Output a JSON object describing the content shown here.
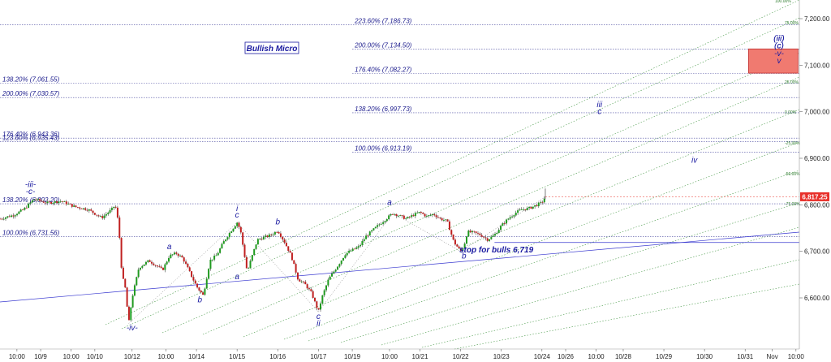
{
  "chart_data": {
    "type": "candlestick",
    "title": "Bullish Micro",
    "ylim": [
      6480,
      7240
    ],
    "xlim": [
      0,
      118
    ],
    "last_price": "6,817.25",
    "last_price_value": 6817.25,
    "y_ticks": [
      {
        "value": 6600,
        "label": "6,600.00"
      },
      {
        "value": 6700,
        "label": "6,700.00"
      },
      {
        "value": 6800,
        "label": "6,800.00"
      },
      {
        "value": 6900,
        "label": "6,900.00"
      },
      {
        "value": 7000,
        "label": "7,000.00"
      },
      {
        "value": 7100,
        "label": "7,100.00"
      },
      {
        "value": 7200,
        "label": "7,200.00"
      }
    ],
    "x_ticks": [
      {
        "x": 2.5,
        "label": "10:00"
      },
      {
        "x": 6,
        "label": "10/9"
      },
      {
        "x": 10.5,
        "label": "10:00"
      },
      {
        "x": 14,
        "label": "10/10"
      },
      {
        "x": 19.5,
        "label": "10/12"
      },
      {
        "x": 24.5,
        "label": "10:00"
      },
      {
        "x": 29,
        "label": "10/14"
      },
      {
        "x": 35,
        "label": "10/15"
      },
      {
        "x": 41,
        "label": "10/16"
      },
      {
        "x": 47,
        "label": "10/17"
      },
      {
        "x": 52,
        "label": "10/19"
      },
      {
        "x": 57.5,
        "label": "10:00"
      },
      {
        "x": 62,
        "label": "10/21"
      },
      {
        "x": 68,
        "label": "10/22"
      },
      {
        "x": 74,
        "label": "10/23"
      },
      {
        "x": 80,
        "label": "10/24"
      },
      {
        "x": 83.5,
        "label": "10/26"
      },
      {
        "x": 88,
        "label": "10:00"
      },
      {
        "x": 92,
        "label": "10/28"
      },
      {
        "x": 98,
        "label": "10/29"
      },
      {
        "x": 104,
        "label": "10/30"
      },
      {
        "x": 110,
        "label": "10/31"
      },
      {
        "x": 114,
        "label": "Nov"
      },
      {
        "x": 117.5,
        "label": "10:00"
      }
    ],
    "price_path": [
      [
        0,
        6770
      ],
      [
        2,
        6778
      ],
      [
        3.5,
        6790
      ],
      [
        5,
        6812
      ],
      [
        7,
        6804
      ],
      [
        9,
        6808
      ],
      [
        11,
        6796
      ],
      [
        13,
        6790
      ],
      [
        15,
        6772
      ],
      [
        16.5,
        6790
      ],
      [
        17,
        6800
      ],
      [
        17.5,
        6760
      ],
      [
        18,
        6650
      ],
      [
        18.5,
        6620
      ],
      [
        19,
        6545
      ],
      [
        19.5,
        6600
      ],
      [
        20.5,
        6665
      ],
      [
        22,
        6680
      ],
      [
        24,
        6660
      ],
      [
        25,
        6690
      ],
      [
        26,
        6696
      ],
      [
        27,
        6685
      ],
      [
        28,
        6655
      ],
      [
        29,
        6625
      ],
      [
        30,
        6605
      ],
      [
        31,
        6680
      ],
      [
        32,
        6692
      ],
      [
        33,
        6720
      ],
      [
        34,
        6742
      ],
      [
        35,
        6762
      ],
      [
        35.5,
        6745
      ],
      [
        36,
        6700
      ],
      [
        36.5,
        6655
      ],
      [
        37,
        6680
      ],
      [
        38,
        6725
      ],
      [
        40,
        6735
      ],
      [
        41,
        6745
      ],
      [
        42,
        6720
      ],
      [
        43,
        6690
      ],
      [
        44,
        6640
      ],
      [
        45,
        6630
      ],
      [
        46,
        6610
      ],
      [
        47,
        6570
      ],
      [
        47.5,
        6600
      ],
      [
        48.5,
        6640
      ],
      [
        50,
        6672
      ],
      [
        51,
        6695
      ],
      [
        53,
        6710
      ],
      [
        54,
        6732
      ],
      [
        55,
        6745
      ],
      [
        56,
        6758
      ],
      [
        57,
        6770
      ],
      [
        58,
        6782
      ],
      [
        59,
        6776
      ],
      [
        60,
        6770
      ],
      [
        61,
        6778
      ],
      [
        62,
        6784
      ],
      [
        63,
        6775
      ],
      [
        64,
        6780
      ],
      [
        65,
        6770
      ],
      [
        66,
        6765
      ],
      [
        67,
        6720
      ],
      [
        68,
        6700
      ],
      [
        68.5,
        6712
      ],
      [
        69,
        6742
      ],
      [
        70,
        6740
      ],
      [
        71,
        6735
      ],
      [
        72,
        6725
      ],
      [
        73,
        6735
      ],
      [
        74,
        6755
      ],
      [
        75,
        6770
      ],
      [
        76,
        6782
      ],
      [
        77,
        6790
      ],
      [
        78,
        6792
      ],
      [
        79,
        6798
      ],
      [
        80,
        6805
      ],
      [
        80.5,
        6817
      ]
    ],
    "fib_levels": [
      {
        "label": "223.60% (7,186.73)",
        "value": 7186.73,
        "x_from": 0,
        "x_label": 52
      },
      {
        "label": "200.00% (7,134.50)",
        "value": 7134.5,
        "x_from": 52,
        "x_label": 52
      },
      {
        "label": "176.40% (7,082.27)",
        "value": 7082.27,
        "x_from": 52,
        "x_label": 52
      },
      {
        "label": "138.20% (7,061.55)",
        "value": 7061.55,
        "x_from": 0,
        "x_label": 0
      },
      {
        "label": "200.00% (7,030.57)",
        "value": 7030.57,
        "x_from": 0,
        "x_label": 0
      },
      {
        "label": "138.20% (6,997.73)",
        "value": 6997.73,
        "x_from": 52,
        "x_label": 52
      },
      {
        "label": "176.40% (6,943.36)",
        "value": 6943.36,
        "x_from": 0,
        "x_label": 0
      },
      {
        "label": "123.60% (6,935.43)",
        "value": 6935.43,
        "x_from": 0,
        "x_label": 0
      },
      {
        "label": "100.00% (6,913.19)",
        "value": 6913.19,
        "x_from": 52,
        "x_label": 52
      },
      {
        "label": "138.20% (6,802.20)",
        "value": 6802.2,
        "x_from": 0,
        "x_label": 0
      },
      {
        "label": "100.00% (6,731.56)",
        "value": 6731.56,
        "x_from": 0,
        "x_label": 0
      }
    ],
    "fan_labels": [
      "100.00%",
      "75.00%",
      "50.00%",
      "25.00%",
      "0.00%",
      "-25.00%",
      "-50.00%",
      "-75.00%"
    ],
    "wave_labels": [
      {
        "text": "-iii-",
        "x": 4.5,
        "y": 6838
      },
      {
        "text": "-c-",
        "x": 4.5,
        "y": 6823
      },
      {
        "text": "-iv-",
        "x": 19.5,
        "y": 6530
      },
      {
        "text": "a",
        "x": 25,
        "y": 6705
      },
      {
        "text": "b",
        "x": 29.5,
        "y": 6590
      },
      {
        "text": "i",
        "x": 35,
        "y": 6787
      },
      {
        "text": "c",
        "x": 35,
        "y": 6773
      },
      {
        "text": "a",
        "x": 35,
        "y": 6640
      },
      {
        "text": "b",
        "x": 41,
        "y": 6758
      },
      {
        "text": "c",
        "x": 47,
        "y": 6555
      },
      {
        "text": "ii",
        "x": 47,
        "y": 6540
      },
      {
        "text": "a",
        "x": 57.5,
        "y": 6800
      },
      {
        "text": "b",
        "x": 68.5,
        "y": 6685
      },
      {
        "text": "iii",
        "x": 88.5,
        "y": 7010
      },
      {
        "text": "c",
        "x": 88.5,
        "y": 6995
      },
      {
        "text": "iv",
        "x": 102.5,
        "y": 6890
      },
      {
        "text": "(iii)",
        "x": 115,
        "y": 7152
      },
      {
        "text": "(c)",
        "x": 115,
        "y": 7136
      },
      {
        "text": "-v-",
        "x": 115,
        "y": 7120
      },
      {
        "text": "v",
        "x": 115,
        "y": 7104
      }
    ],
    "stop_label": "stop for bulls 6,719",
    "stop_level": 6719,
    "target_box": {
      "x1": 110.5,
      "x2": 117.8,
      "y1": 7083,
      "y2": 7135
    }
  }
}
